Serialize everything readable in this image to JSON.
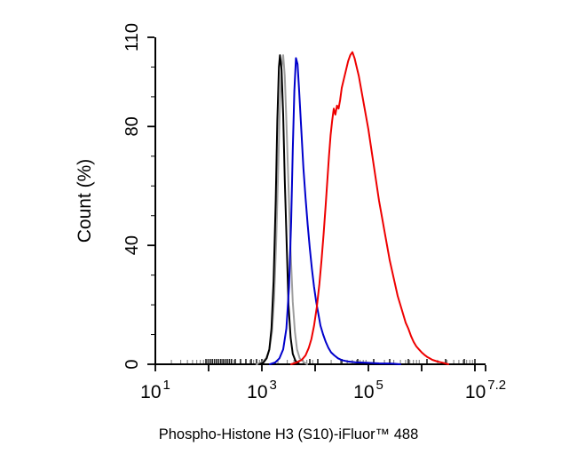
{
  "chart_data": {
    "type": "line",
    "subtype": "flow-cytometry-histogram-overlay",
    "title": "",
    "xlabel": "Phospho-Histone H3 (S10)-iFluor™ 488",
    "ylabel": "Count  (%)",
    "x_scale": "log10",
    "xlim": [
      1,
      7.2
    ],
    "ylim": [
      0,
      110
    ],
    "grid": false,
    "legend": "none",
    "axis_color": "#000000",
    "x_ticks": [
      {
        "exp": 1,
        "mantissa": "10",
        "exponent": "1"
      },
      {
        "exp": 3,
        "mantissa": "10",
        "exponent": "3"
      },
      {
        "exp": 5,
        "mantissa": "10",
        "exponent": "5"
      },
      {
        "exp": 7.2,
        "mantissa": "10",
        "exponent": "7.2"
      }
    ],
    "y_ticks": [
      {
        "v": 0,
        "label": "0"
      },
      {
        "v": 40,
        "label": "40"
      },
      {
        "v": 80,
        "label": "80"
      },
      {
        "v": 110,
        "label": "110"
      }
    ],
    "y_minor_step": 10,
    "baseline_rug": [
      1.95,
      1.99,
      2.03,
      2.07,
      2.11,
      2.15,
      2.19,
      2.23,
      2.27,
      2.31,
      2.35,
      2.39,
      2.43,
      2.5,
      2.6,
      2.7,
      2.8,
      2.9,
      3.0,
      3.9,
      4.05,
      4.5,
      4.8,
      5.1,
      5.4,
      5.75,
      6.1,
      6.45,
      6.8,
      7.0
    ],
    "series": [
      {
        "name": "gray",
        "color": "#9e9e9e",
        "width": 2,
        "points": [
          [
            2.9,
            0
          ],
          [
            3.0,
            0.6
          ],
          [
            3.08,
            2
          ],
          [
            3.14,
            5
          ],
          [
            3.19,
            11
          ],
          [
            3.23,
            22
          ],
          [
            3.27,
            42
          ],
          [
            3.31,
            68
          ],
          [
            3.34,
            88
          ],
          [
            3.37,
            100
          ],
          [
            3.4,
            104
          ],
          [
            3.43,
            97
          ],
          [
            3.46,
            82
          ],
          [
            3.5,
            60
          ],
          [
            3.54,
            38
          ],
          [
            3.58,
            21
          ],
          [
            3.62,
            11
          ],
          [
            3.66,
            5
          ],
          [
            3.71,
            2
          ],
          [
            3.78,
            0.8
          ],
          [
            3.85,
            0
          ]
        ]
      },
      {
        "name": "black",
        "color": "#000000",
        "width": 2,
        "points": [
          [
            2.95,
            0
          ],
          [
            3.03,
            0.6
          ],
          [
            3.09,
            2
          ],
          [
            3.14,
            5
          ],
          [
            3.18,
            12
          ],
          [
            3.22,
            28
          ],
          [
            3.26,
            55
          ],
          [
            3.29,
            82
          ],
          [
            3.32,
            100
          ],
          [
            3.34,
            104
          ],
          [
            3.37,
            99
          ],
          [
            3.4,
            84
          ],
          [
            3.43,
            62
          ],
          [
            3.47,
            38
          ],
          [
            3.5,
            20
          ],
          [
            3.54,
            9
          ],
          [
            3.58,
            3.5
          ],
          [
            3.63,
            1.2
          ],
          [
            3.7,
            0
          ]
        ]
      },
      {
        "name": "blue",
        "color": "#0000cc",
        "width": 2,
        "points": [
          [
            3.15,
            0
          ],
          [
            3.25,
            0.6
          ],
          [
            3.33,
            2
          ],
          [
            3.4,
            5
          ],
          [
            3.46,
            12
          ],
          [
            3.51,
            26
          ],
          [
            3.55,
            48
          ],
          [
            3.58,
            72
          ],
          [
            3.61,
            92
          ],
          [
            3.64,
            103
          ],
          [
            3.67,
            101
          ],
          [
            3.7,
            92
          ],
          [
            3.74,
            79
          ],
          [
            3.78,
            66
          ],
          [
            3.82,
            56
          ],
          [
            3.86,
            47
          ],
          [
            3.9,
            39
          ],
          [
            3.94,
            32
          ],
          [
            3.98,
            26
          ],
          [
            4.02,
            21
          ],
          [
            4.06,
            17
          ],
          [
            4.1,
            13
          ],
          [
            4.15,
            10
          ],
          [
            4.2,
            7.5
          ],
          [
            4.25,
            5.5
          ],
          [
            4.3,
            4
          ],
          [
            4.36,
            3
          ],
          [
            4.43,
            2
          ],
          [
            4.5,
            1.4
          ],
          [
            4.6,
            1
          ],
          [
            4.75,
            0.7
          ],
          [
            4.95,
            0.5
          ],
          [
            5.2,
            0.3
          ],
          [
            5.45,
            0.2
          ],
          [
            5.6,
            0
          ]
        ]
      },
      {
        "name": "red",
        "color": "#ee0000",
        "width": 2,
        "points": [
          [
            3.55,
            0
          ],
          [
            3.65,
            0.6
          ],
          [
            3.75,
            1.5
          ],
          [
            3.82,
            3
          ],
          [
            3.88,
            5.5
          ],
          [
            3.93,
            8.5
          ],
          [
            3.98,
            13
          ],
          [
            4.03,
            19
          ],
          [
            4.08,
            27
          ],
          [
            4.12,
            35
          ],
          [
            4.16,
            44
          ],
          [
            4.2,
            54
          ],
          [
            4.23,
            62
          ],
          [
            4.26,
            70
          ],
          [
            4.29,
            77
          ],
          [
            4.32,
            82
          ],
          [
            4.35,
            86
          ],
          [
            4.38,
            84
          ],
          [
            4.41,
            87
          ],
          [
            4.44,
            86
          ],
          [
            4.47,
            89
          ],
          [
            4.5,
            93
          ],
          [
            4.54,
            96
          ],
          [
            4.58,
            99
          ],
          [
            4.62,
            102
          ],
          [
            4.66,
            104
          ],
          [
            4.7,
            105
          ],
          [
            4.74,
            103
          ],
          [
            4.78,
            100
          ],
          [
            4.82,
            97
          ],
          [
            4.86,
            93
          ],
          [
            4.9,
            89
          ],
          [
            4.95,
            84
          ],
          [
            5.0,
            79
          ],
          [
            5.05,
            73
          ],
          [
            5.1,
            67
          ],
          [
            5.15,
            61
          ],
          [
            5.2,
            55
          ],
          [
            5.25,
            50
          ],
          [
            5.3,
            45
          ],
          [
            5.35,
            40
          ],
          [
            5.4,
            35
          ],
          [
            5.45,
            31
          ],
          [
            5.5,
            27
          ],
          [
            5.55,
            23
          ],
          [
            5.6,
            20
          ],
          [
            5.65,
            17
          ],
          [
            5.7,
            14
          ],
          [
            5.75,
            12
          ],
          [
            5.8,
            9.5
          ],
          [
            5.85,
            7.5
          ],
          [
            5.9,
            6
          ],
          [
            5.95,
            5
          ],
          [
            6.0,
            4
          ],
          [
            6.05,
            3.2
          ],
          [
            6.1,
            2.5
          ],
          [
            6.15,
            2
          ],
          [
            6.2,
            1.5
          ],
          [
            6.3,
            0.9
          ],
          [
            6.4,
            0.5
          ],
          [
            6.5,
            0
          ]
        ]
      }
    ]
  }
}
